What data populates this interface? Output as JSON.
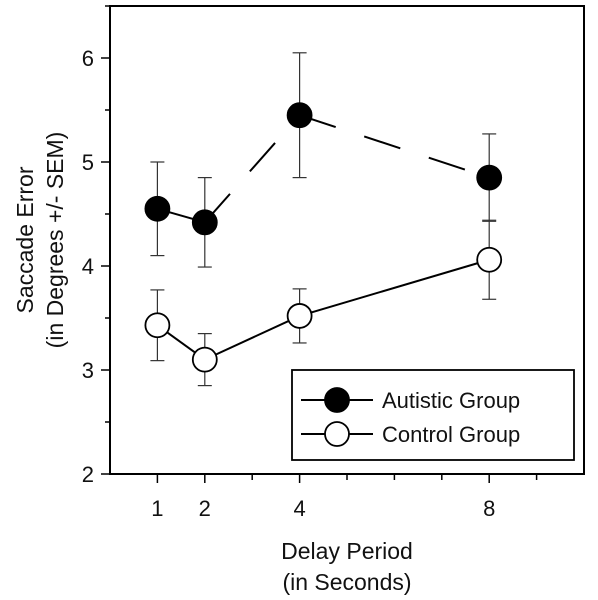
{
  "chart_data": {
    "type": "line",
    "xlabel": [
      "Delay Period",
      "(in Seconds)"
    ],
    "ylabel": [
      "Saccade Error",
      "(in Degrees +/- SEM)"
    ],
    "xlim": [
      0,
      10
    ],
    "ylim": [
      2,
      6.5
    ],
    "x_ticks": [
      1,
      2,
      4,
      8
    ],
    "y_ticks": [
      2,
      3,
      4,
      5,
      6
    ],
    "grid": false,
    "legend_position": "bottom-right",
    "series": [
      {
        "name": "Autistic Group",
        "marker": "filled-circle",
        "color": "#000000",
        "x": [
          1,
          2,
          4,
          8
        ],
        "y": [
          4.55,
          4.42,
          5.45,
          4.85
        ],
        "err": [
          0.45,
          0.43,
          0.6,
          0.42
        ],
        "segment_styles": [
          "solid",
          "dashed",
          "dashed"
        ]
      },
      {
        "name": "Control Group",
        "marker": "open-circle",
        "color": "#000000",
        "x": [
          1,
          2,
          4,
          8
        ],
        "y": [
          3.43,
          3.1,
          3.52,
          4.06
        ],
        "err": [
          0.34,
          0.25,
          0.26,
          0.38
        ],
        "segment_styles": [
          "solid",
          "solid",
          "solid"
        ]
      }
    ]
  }
}
